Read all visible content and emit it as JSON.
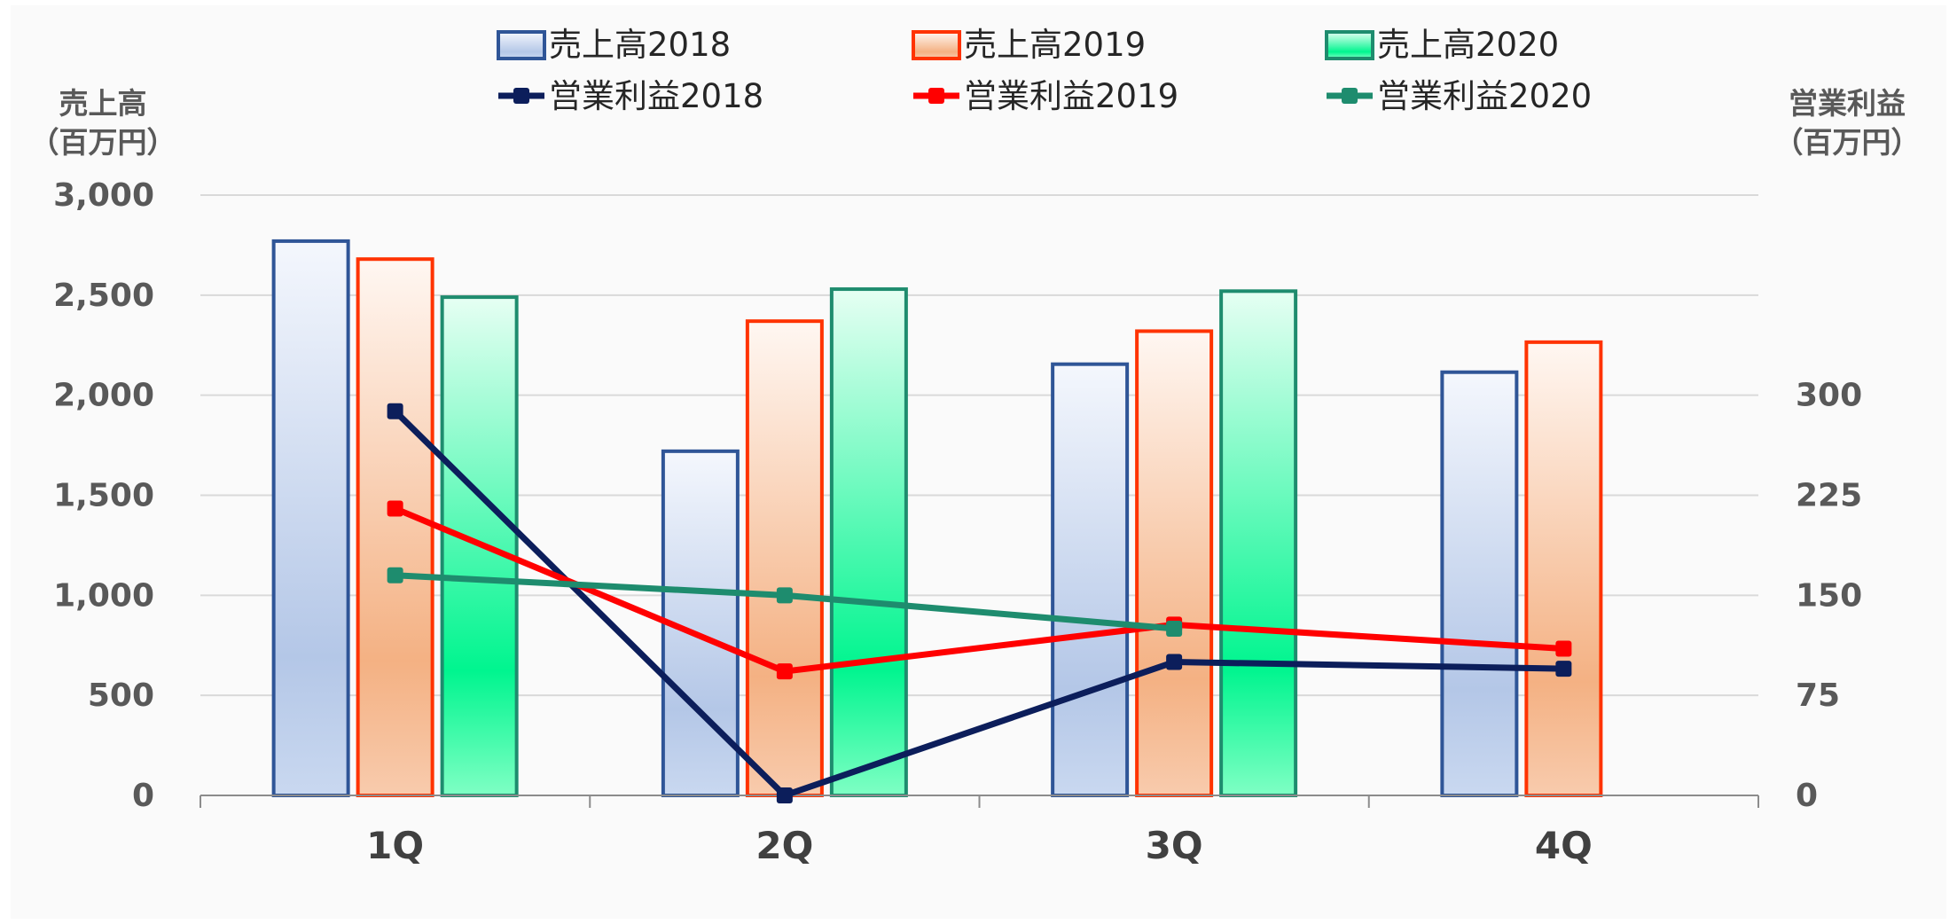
{
  "chart_data": {
    "type": "bar",
    "categories": [
      "1Q",
      "2Q",
      "3Q",
      "4Q"
    ],
    "y_left": {
      "label_lines": [
        "売上高",
        "（百万円）"
      ],
      "ylim": [
        0,
        3000
      ],
      "ticks": [
        0,
        500,
        1000,
        1500,
        2000,
        2500,
        3000
      ],
      "tick_labels": [
        "0",
        "500",
        "1,000",
        "1,500",
        "2,000",
        "2,500",
        "3,000"
      ]
    },
    "y_right": {
      "label_lines": [
        "営業利益",
        "（百万円）"
      ],
      "ylim": [
        0,
        450
      ],
      "ticks": [
        0,
        75,
        150,
        225,
        300
      ],
      "tick_labels": [
        "0",
        "75",
        "150",
        "225",
        "300"
      ]
    },
    "bar_series": [
      {
        "name": "売上高2018",
        "values": [
          2770,
          1720,
          2155,
          2115
        ],
        "stroke": "#2F5597",
        "fill_top": "#F4F7FD",
        "fill_mid": "#B4C7E7",
        "fill_bottom": "#C9D8F0"
      },
      {
        "name": "売上高2019",
        "values": [
          2680,
          2370,
          2320,
          2265
        ],
        "stroke": "#FF3300",
        "fill_top": "#FFF7F2",
        "fill_mid": "#F4B183",
        "fill_bottom": "#F8CBAD"
      },
      {
        "name": "売上高2020",
        "values": [
          2490,
          2530,
          2520,
          null
        ],
        "stroke": "#1E8C6E",
        "fill_top": "#E6FFF3",
        "fill_mid": "#00F58F",
        "fill_bottom": "#7FFFC4"
      }
    ],
    "line_series": [
      {
        "name": "営業利益2018",
        "values": [
          288,
          0,
          100,
          95
        ],
        "color": "#0C1E5B"
      },
      {
        "name": "営業利益2019",
        "values": [
          215,
          93,
          128,
          110
        ],
        "color": "#FF0000"
      },
      {
        "name": "営業利益2020",
        "values": [
          165,
          150,
          125,
          null
        ],
        "color": "#1E8C6E"
      }
    ],
    "grid": true,
    "legend": "top"
  }
}
